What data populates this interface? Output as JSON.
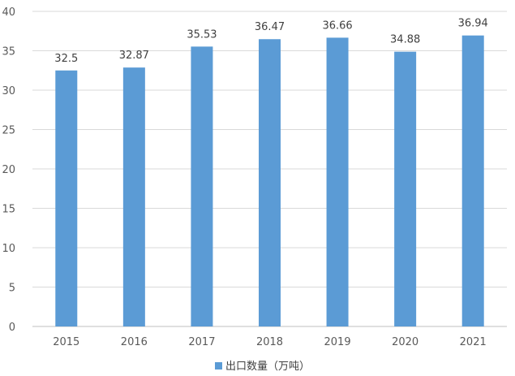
{
  "chart_data": {
    "type": "bar",
    "categories": [
      "2015",
      "2016",
      "2017",
      "2018",
      "2019",
      "2020",
      "2021"
    ],
    "series": [
      {
        "name": "出口数量（万吨）",
        "values": [
          32.5,
          32.87,
          35.53,
          36.47,
          36.66,
          34.88,
          36.94
        ],
        "color": "#5b9bd5"
      }
    ],
    "data_labels": [
      "32.5",
      "32.87",
      "35.53",
      "36.47",
      "36.66",
      "34.88",
      "36.94"
    ],
    "title": "",
    "xlabel": "",
    "ylabel": "",
    "ylim": [
      0,
      40
    ],
    "yticks": [
      0,
      5,
      10,
      15,
      20,
      25,
      30,
      35,
      40
    ],
    "grid": true,
    "legend_position": "bottom"
  }
}
